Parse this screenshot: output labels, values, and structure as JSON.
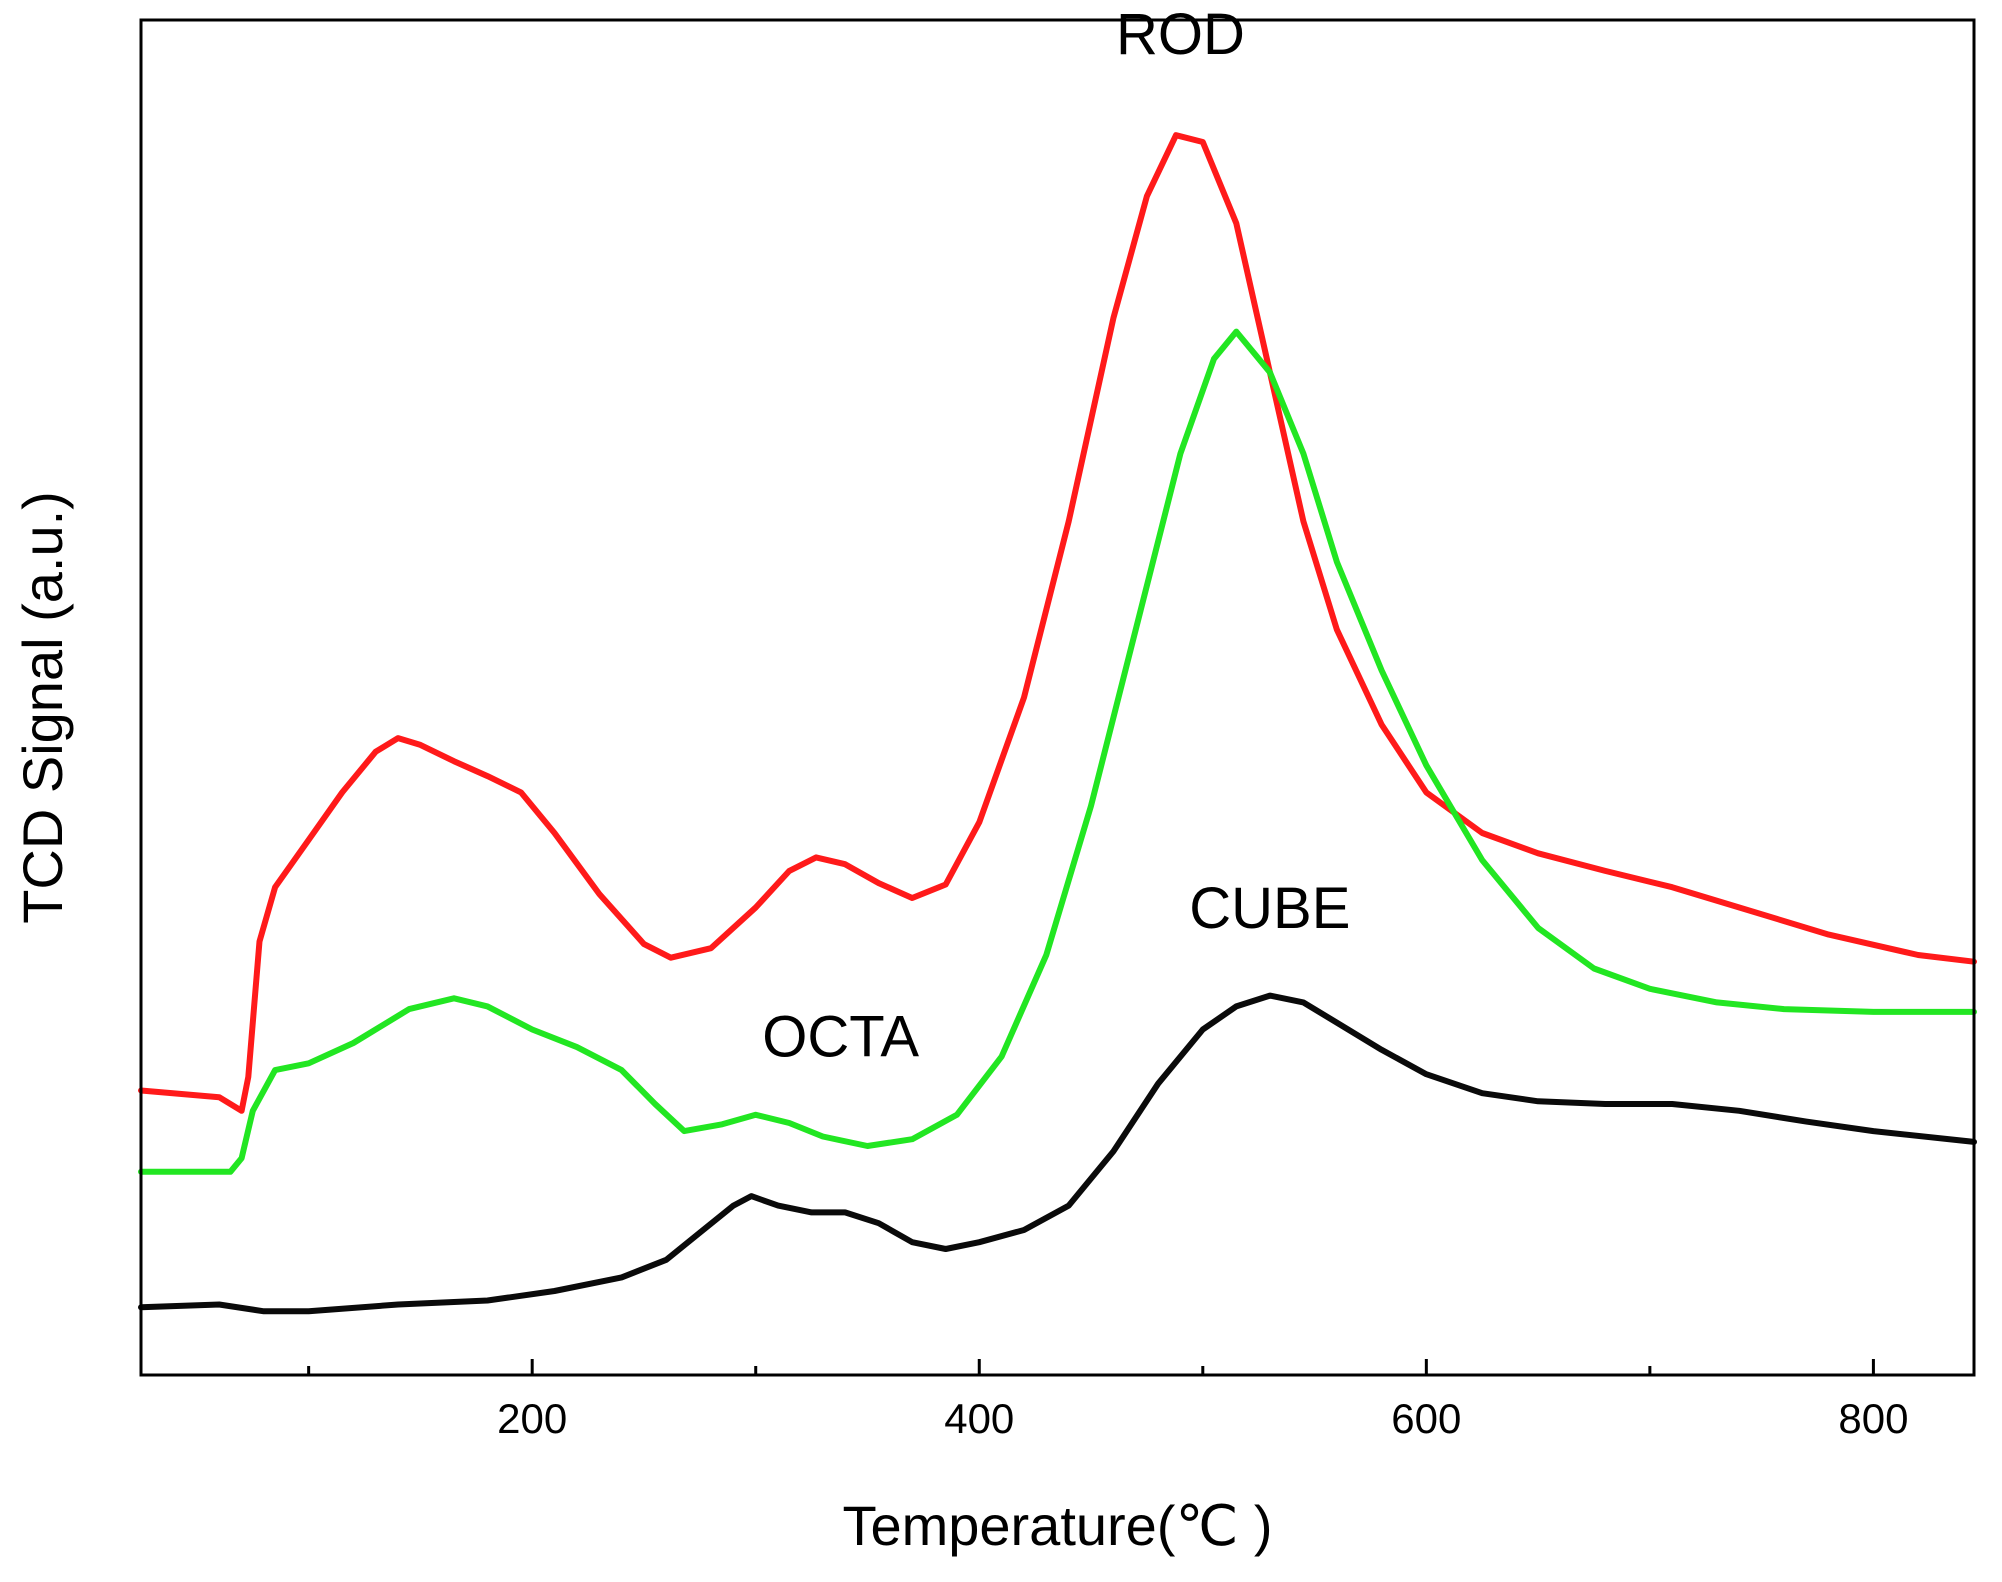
{
  "chart_data": {
    "type": "line",
    "title": "",
    "xlabel": "Temperature(℃ )",
    "ylabel": "TCD Signal (a.u.)",
    "xlim": [
      25,
      845
    ],
    "ylim": [
      0,
      10
    ],
    "xticks": [
      200,
      400,
      600,
      800
    ],
    "x_minor_ticks": [
      100,
      300,
      500,
      700
    ],
    "yticks": [],
    "grid": false,
    "legend": "none",
    "series": [
      {
        "label": "ROD",
        "color": "#ff1a1a",
        "points": [
          [
            25,
            2.1
          ],
          [
            60,
            2.05
          ],
          [
            70,
            1.95
          ],
          [
            73,
            2.2
          ],
          [
            78,
            3.2
          ],
          [
            85,
            3.6
          ],
          [
            100,
            3.95
          ],
          [
            115,
            4.3
          ],
          [
            130,
            4.6
          ],
          [
            140,
            4.7
          ],
          [
            150,
            4.65
          ],
          [
            165,
            4.53
          ],
          [
            180,
            4.42
          ],
          [
            195,
            4.3
          ],
          [
            210,
            4.0
          ],
          [
            230,
            3.55
          ],
          [
            250,
            3.18
          ],
          [
            262,
            3.08
          ],
          [
            280,
            3.15
          ],
          [
            300,
            3.45
          ],
          [
            315,
            3.72
          ],
          [
            327,
            3.82
          ],
          [
            340,
            3.77
          ],
          [
            355,
            3.63
          ],
          [
            370,
            3.52
          ],
          [
            385,
            3.62
          ],
          [
            400,
            4.08
          ],
          [
            420,
            5.0
          ],
          [
            440,
            6.3
          ],
          [
            460,
            7.8
          ],
          [
            475,
            8.7
          ],
          [
            488,
            9.15
          ],
          [
            500,
            9.1
          ],
          [
            515,
            8.5
          ],
          [
            530,
            7.4
          ],
          [
            545,
            6.3
          ],
          [
            560,
            5.5
          ],
          [
            580,
            4.8
          ],
          [
            600,
            4.3
          ],
          [
            625,
            4.0
          ],
          [
            650,
            3.85
          ],
          [
            680,
            3.72
          ],
          [
            710,
            3.6
          ],
          [
            740,
            3.45
          ],
          [
            780,
            3.25
          ],
          [
            820,
            3.1
          ],
          [
            845,
            3.05
          ]
        ]
      },
      {
        "label": "OCTA",
        "color": "#22e622",
        "points": [
          [
            25,
            1.5
          ],
          [
            65,
            1.5
          ],
          [
            70,
            1.6
          ],
          [
            75,
            1.95
          ],
          [
            85,
            2.25
          ],
          [
            100,
            2.3
          ],
          [
            120,
            2.45
          ],
          [
            145,
            2.7
          ],
          [
            165,
            2.78
          ],
          [
            180,
            2.72
          ],
          [
            200,
            2.55
          ],
          [
            220,
            2.42
          ],
          [
            240,
            2.25
          ],
          [
            255,
            2.0
          ],
          [
            268,
            1.8
          ],
          [
            285,
            1.85
          ],
          [
            300,
            1.92
          ],
          [
            315,
            1.86
          ],
          [
            330,
            1.76
          ],
          [
            350,
            1.69
          ],
          [
            370,
            1.74
          ],
          [
            390,
            1.92
          ],
          [
            410,
            2.35
          ],
          [
            430,
            3.1
          ],
          [
            450,
            4.2
          ],
          [
            470,
            5.5
          ],
          [
            490,
            6.8
          ],
          [
            505,
            7.5
          ],
          [
            515,
            7.7
          ],
          [
            530,
            7.4
          ],
          [
            545,
            6.8
          ],
          [
            560,
            6.0
          ],
          [
            580,
            5.2
          ],
          [
            600,
            4.5
          ],
          [
            625,
            3.8
          ],
          [
            650,
            3.3
          ],
          [
            675,
            3.0
          ],
          [
            700,
            2.85
          ],
          [
            730,
            2.75
          ],
          [
            760,
            2.7
          ],
          [
            800,
            2.68
          ],
          [
            845,
            2.68
          ]
        ]
      },
      {
        "label": "CUBE",
        "color": "#0a0a0a",
        "points": [
          [
            25,
            0.5
          ],
          [
            60,
            0.52
          ],
          [
            80,
            0.47
          ],
          [
            100,
            0.47
          ],
          [
            140,
            0.52
          ],
          [
            180,
            0.55
          ],
          [
            210,
            0.62
          ],
          [
            240,
            0.72
          ],
          [
            260,
            0.85
          ],
          [
            275,
            1.05
          ],
          [
            290,
            1.25
          ],
          [
            298,
            1.32
          ],
          [
            310,
            1.25
          ],
          [
            325,
            1.2
          ],
          [
            340,
            1.2
          ],
          [
            355,
            1.12
          ],
          [
            370,
            0.98
          ],
          [
            385,
            0.93
          ],
          [
            400,
            0.98
          ],
          [
            420,
            1.07
          ],
          [
            440,
            1.25
          ],
          [
            460,
            1.65
          ],
          [
            480,
            2.15
          ],
          [
            500,
            2.55
          ],
          [
            515,
            2.72
          ],
          [
            530,
            2.8
          ],
          [
            545,
            2.75
          ],
          [
            560,
            2.6
          ],
          [
            580,
            2.4
          ],
          [
            600,
            2.22
          ],
          [
            625,
            2.08
          ],
          [
            650,
            2.02
          ],
          [
            680,
            2.0
          ],
          [
            710,
            2.0
          ],
          [
            740,
            1.95
          ],
          [
            770,
            1.87
          ],
          [
            800,
            1.8
          ],
          [
            845,
            1.72
          ]
        ]
      }
    ],
    "annotations": [
      {
        "text": "ROD",
        "series": "ROD",
        "x": 490,
        "y": 9.75
      },
      {
        "text": "OCTA",
        "series": "OCTA",
        "x": 338,
        "y": 2.35
      },
      {
        "text": "CUBE",
        "series": "CUBE",
        "x": 530,
        "y": 3.3
      }
    ]
  }
}
